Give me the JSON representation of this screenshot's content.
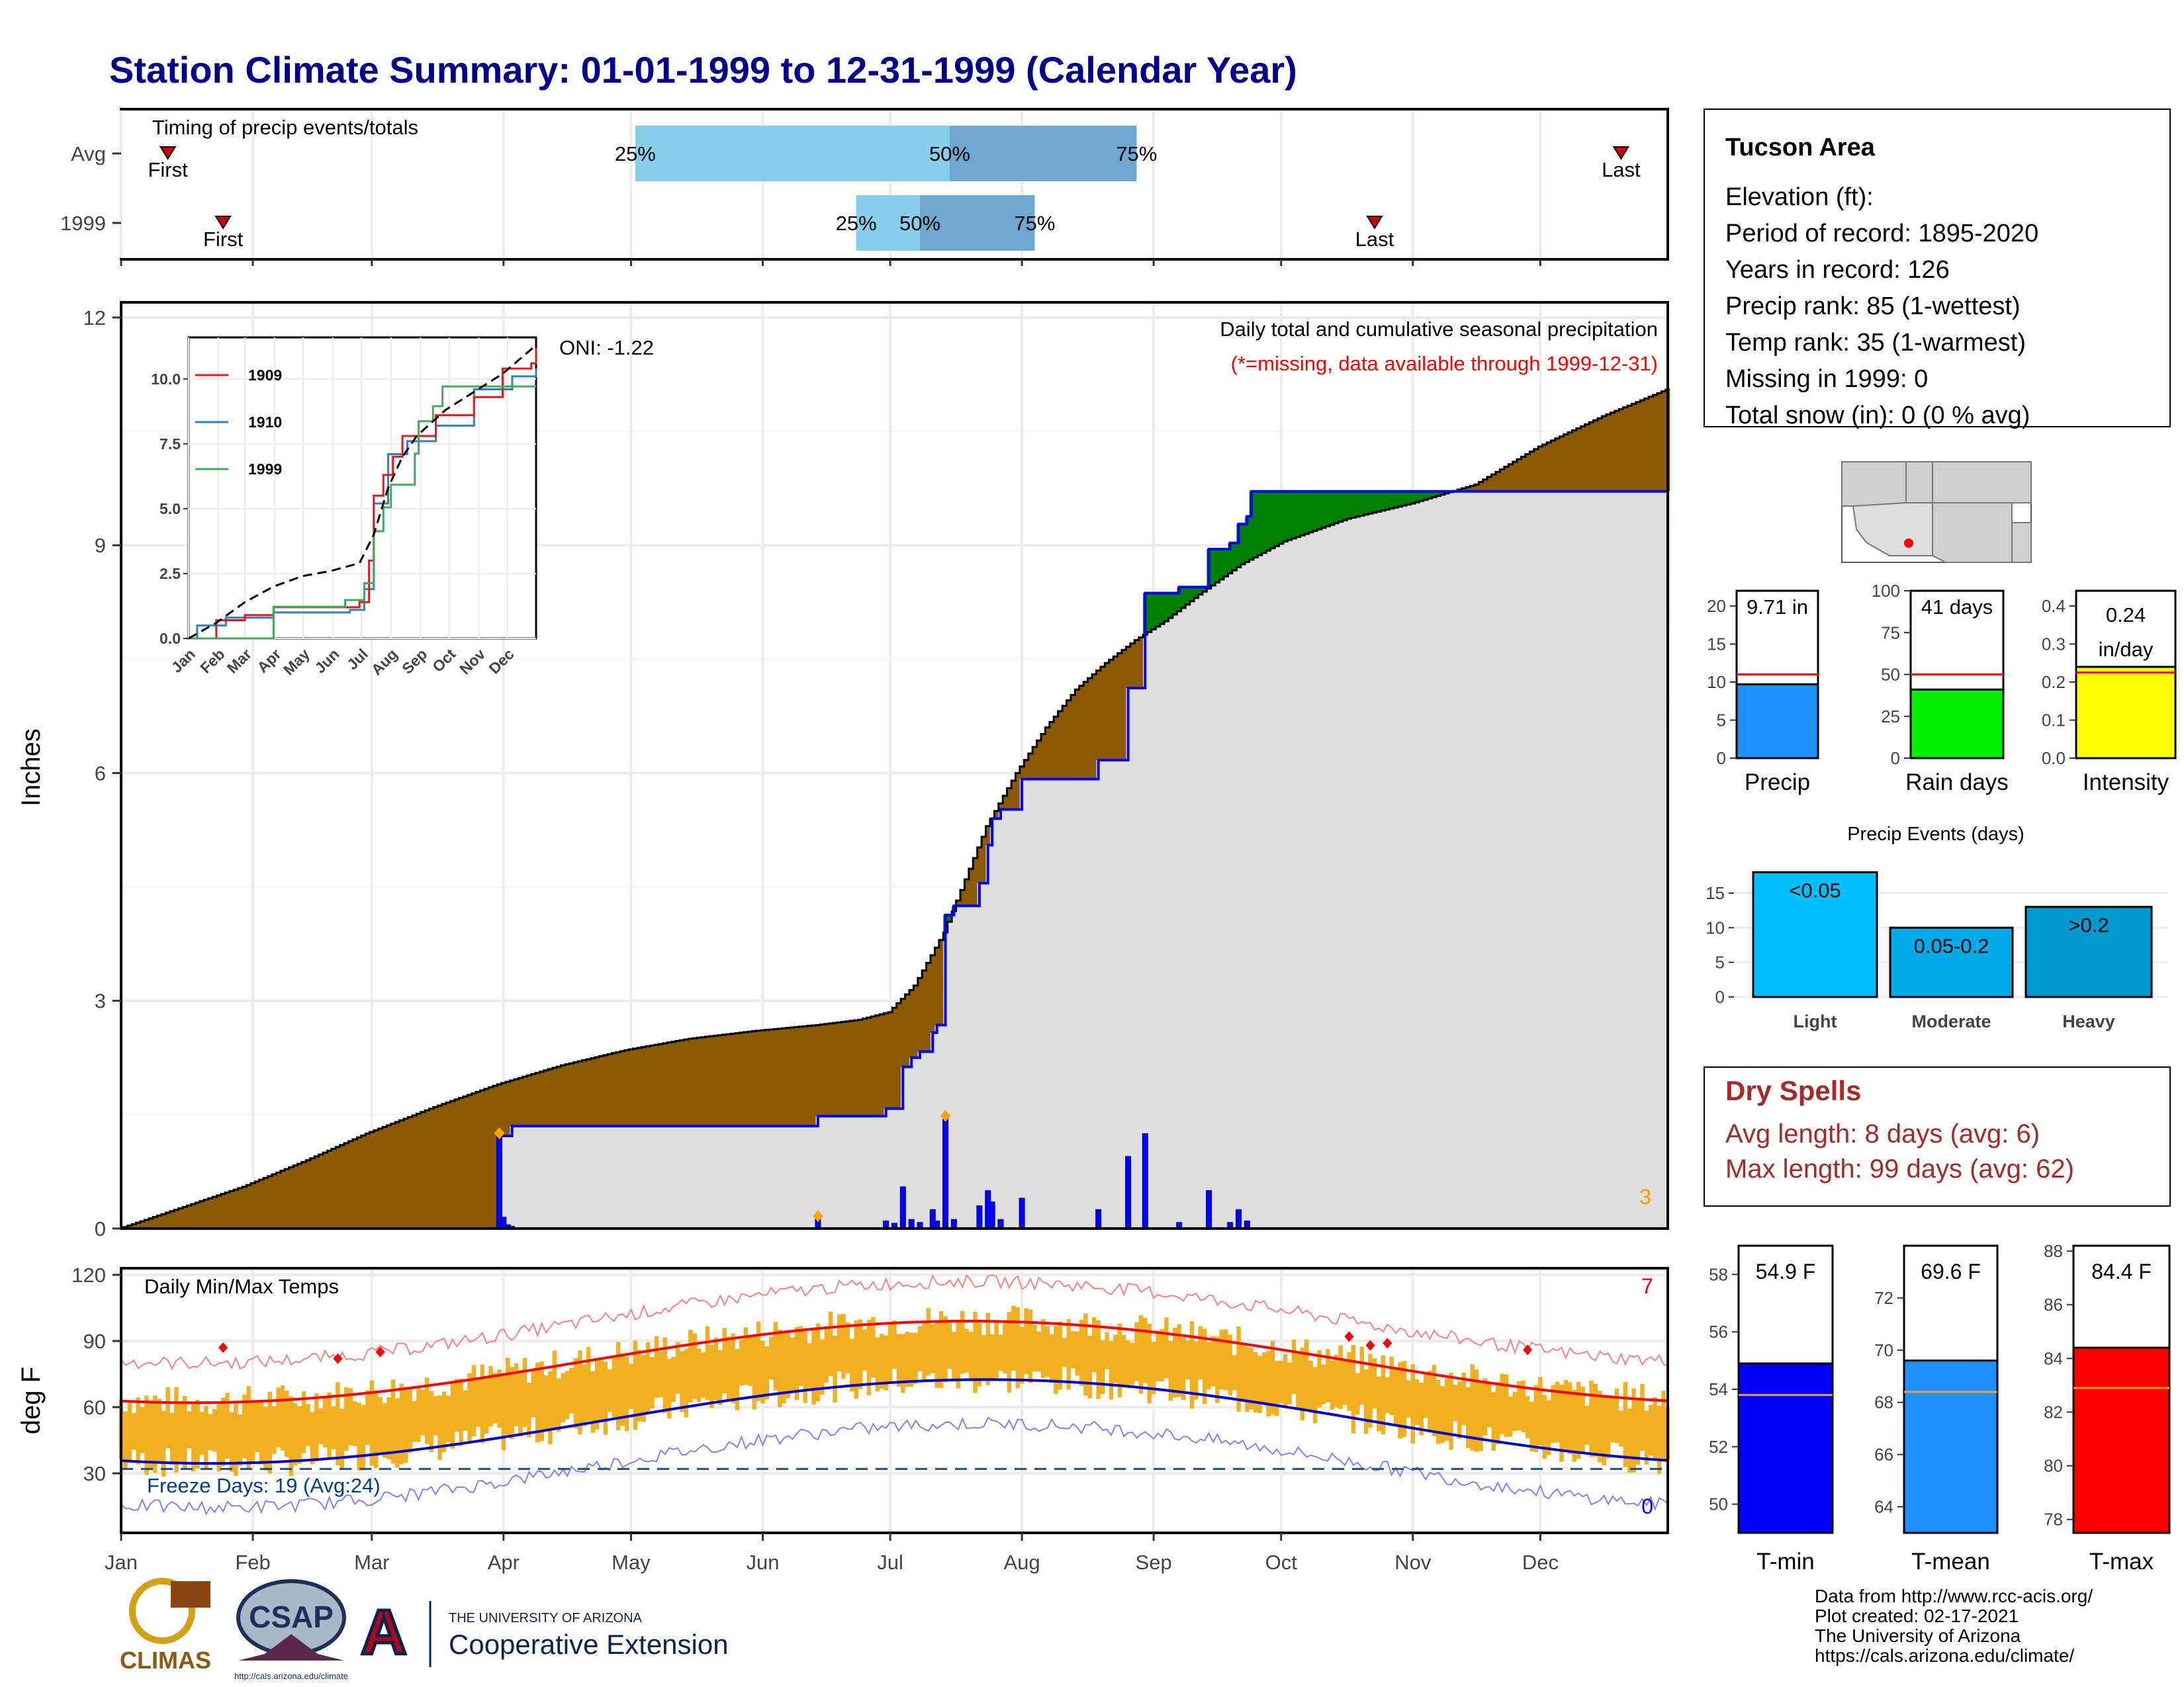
{
  "title": "Station Climate Summary: 01-01-1999 to 12-31-1999 (Calendar Year)",
  "months": [
    "Jan",
    "Feb",
    "Mar",
    "Apr",
    "May",
    "Jun",
    "Jul",
    "Aug",
    "Sep",
    "Oct",
    "Nov",
    "Dec"
  ],
  "timing": {
    "title": "Timing of precip events/totals",
    "rows": [
      {
        "label": "Avg",
        "first_doy": 12,
        "last_doy": 354,
        "p25": 122,
        "p50": 196,
        "p75": 240,
        "p25_label": "25%",
        "p50_label": "50%",
        "p75_label": "75%",
        "first_label": "First",
        "last_label": "Last"
      },
      {
        "label": "1999",
        "first_doy": 25,
        "last_doy": 296,
        "p25": 174,
        "p50": 189,
        "p75": 216,
        "p25_label": "25%",
        "p50_label": "50%",
        "p75_label": "75%",
        "first_label": "First",
        "last_label": "Last"
      }
    ]
  },
  "precip": {
    "ylabel": "Inches",
    "yticks": [
      0,
      3,
      6,
      9,
      12
    ],
    "caption1": "Daily total and cumulative seasonal precipitation",
    "caption2": "(*=missing, data available through 1999-12-31)",
    "oni": "ONI: -1.22",
    "corner_count": "3",
    "avg_cum": [
      [
        1,
        0
      ],
      [
        30,
        0.55
      ],
      [
        45,
        0.9
      ],
      [
        59,
        1.25
      ],
      [
        75,
        1.6
      ],
      [
        90,
        1.9
      ],
      [
        105,
        2.15
      ],
      [
        120,
        2.35
      ],
      [
        135,
        2.5
      ],
      [
        150,
        2.6
      ],
      [
        165,
        2.68
      ],
      [
        175,
        2.75
      ],
      [
        182,
        2.85
      ],
      [
        188,
        3.2
      ],
      [
        195,
        3.9
      ],
      [
        200,
        4.6
      ],
      [
        205,
        5.3
      ],
      [
        212,
        6.0
      ],
      [
        219,
        6.6
      ],
      [
        226,
        7.1
      ],
      [
        233,
        7.45
      ],
      [
        240,
        7.75
      ],
      [
        247,
        8.0
      ],
      [
        255,
        8.35
      ],
      [
        265,
        8.75
      ],
      [
        275,
        9.05
      ],
      [
        290,
        9.35
      ],
      [
        305,
        9.55
      ],
      [
        320,
        9.8
      ],
      [
        335,
        10.3
      ],
      [
        350,
        10.7
      ],
      [
        365,
        11.05
      ]
    ],
    "daily": [
      [
        90,
        1.22
      ],
      [
        91,
        0.15
      ],
      [
        92,
        0.05
      ],
      [
        93,
        0.03
      ],
      [
        165,
        0.13
      ],
      [
        181,
        0.1
      ],
      [
        183,
        0.07
      ],
      [
        185,
        0.55
      ],
      [
        187,
        0.12
      ],
      [
        189,
        0.08
      ],
      [
        192,
        0.25
      ],
      [
        193,
        0.1
      ],
      [
        195,
        1.45
      ],
      [
        197,
        0.12
      ],
      [
        203,
        0.3
      ],
      [
        205,
        0.5
      ],
      [
        206,
        0.35
      ],
      [
        208,
        0.12
      ],
      [
        213,
        0.4
      ],
      [
        231,
        0.25
      ],
      [
        238,
        0.95
      ],
      [
        242,
        1.25
      ],
      [
        250,
        0.08
      ],
      [
        257,
        0.5
      ],
      [
        262,
        0.08
      ],
      [
        264,
        0.25
      ],
      [
        266,
        0.1
      ]
    ],
    "diamonds": [
      90,
      165,
      195
    ],
    "cum_1999": [
      [
        1,
        0
      ],
      [
        89,
        0
      ],
      [
        90,
        1.22
      ],
      [
        93,
        1.35
      ],
      [
        164,
        1.35
      ],
      [
        165,
        1.48
      ],
      [
        180,
        1.48
      ],
      [
        181,
        1.58
      ],
      [
        185,
        2.13
      ],
      [
        187,
        2.25
      ],
      [
        189,
        2.33
      ],
      [
        192,
        2.58
      ],
      [
        193,
        2.68
      ],
      [
        195,
        4.13
      ],
      [
        197,
        4.25
      ],
      [
        203,
        4.55
      ],
      [
        205,
        5.05
      ],
      [
        206,
        5.4
      ],
      [
        208,
        5.52
      ],
      [
        213,
        5.92
      ],
      [
        231,
        6.17
      ],
      [
        238,
        7.12
      ],
      [
        242,
        8.37
      ],
      [
        250,
        8.45
      ],
      [
        257,
        8.95
      ],
      [
        262,
        9.03
      ],
      [
        264,
        9.28
      ],
      [
        266,
        9.38
      ],
      [
        267,
        9.71
      ],
      [
        365,
        9.71
      ]
    ]
  },
  "inset": {
    "yticks": [
      "0.0",
      "2.5",
      "5.0",
      "7.5",
      "10.0"
    ],
    "months": [
      "Jan",
      "Feb",
      "Mar",
      "Apr",
      "May",
      "Jun",
      "Jul",
      "Aug",
      "Sep",
      "Oct",
      "Nov",
      "Dec"
    ],
    "legend": [
      {
        "name": "1909",
        "color": "#e31a1c"
      },
      {
        "name": "1910",
        "color": "#3182bd"
      },
      {
        "name": "1999",
        "color": "#41ab5d"
      }
    ],
    "avg": [
      [
        1,
        0
      ],
      [
        30,
        0.6
      ],
      [
        60,
        1.4
      ],
      [
        90,
        2.0
      ],
      [
        120,
        2.4
      ],
      [
        150,
        2.6
      ],
      [
        180,
        2.9
      ],
      [
        195,
        4.0
      ],
      [
        210,
        5.8
      ],
      [
        225,
        7.0
      ],
      [
        240,
        7.8
      ],
      [
        270,
        8.8
      ],
      [
        300,
        9.5
      ],
      [
        330,
        10.2
      ],
      [
        365,
        11.3
      ]
    ],
    "s1909": [
      [
        1,
        0
      ],
      [
        25,
        0
      ],
      [
        30,
        0.7
      ],
      [
        60,
        0.9
      ],
      [
        90,
        1.2
      ],
      [
        150,
        1.2
      ],
      [
        180,
        1.4
      ],
      [
        190,
        3.0
      ],
      [
        195,
        5.5
      ],
      [
        205,
        6.3
      ],
      [
        215,
        7.0
      ],
      [
        225,
        7.8
      ],
      [
        260,
        8.6
      ],
      [
        300,
        9.3
      ],
      [
        330,
        10.4
      ],
      [
        360,
        10.6
      ],
      [
        365,
        11.2
      ]
    ],
    "s1910": [
      [
        1,
        0
      ],
      [
        10,
        0.5
      ],
      [
        40,
        0.8
      ],
      [
        90,
        1.0
      ],
      [
        170,
        1.1
      ],
      [
        185,
        1.9
      ],
      [
        195,
        5.2
      ],
      [
        210,
        7.1
      ],
      [
        230,
        7.6
      ],
      [
        260,
        8.2
      ],
      [
        300,
        9.6
      ],
      [
        340,
        10.1
      ],
      [
        365,
        10.4
      ]
    ],
    "s1999": [
      [
        1,
        0
      ],
      [
        89,
        0
      ],
      [
        90,
        1.22
      ],
      [
        165,
        1.48
      ],
      [
        185,
        2.13
      ],
      [
        195,
        4.13
      ],
      [
        205,
        5.05
      ],
      [
        213,
        5.92
      ],
      [
        238,
        7.12
      ],
      [
        242,
        8.37
      ],
      [
        257,
        8.95
      ],
      [
        267,
        9.71
      ],
      [
        365,
        9.71
      ]
    ]
  },
  "temps": {
    "ylabel": "deg F",
    "title": "Daily Min/Max Temps",
    "yticks": [
      30,
      60,
      90,
      120
    ],
    "freeze_label": "Freeze Days: 19 (Avg:24)",
    "count_top": "7",
    "count_bottom": "0"
  },
  "station": {
    "name": "Tucson Area",
    "lines": [
      "Elevation (ft):",
      "Period of record: 1895-2020",
      "Years in record: 126",
      "Precip rank: 85 (1-wettest)",
      "Temp rank: 35 (1-warmest)",
      "Missing in 1999: 0",
      "Total snow (in): 0 (0 % avg)"
    ]
  },
  "mini_bars": [
    {
      "label": "Precip",
      "value": 9.71,
      "avg": 11.0,
      "ymax": 22,
      "ticks": [
        0,
        5,
        10,
        15,
        20
      ],
      "text": "9.71 in",
      "color": "#1e90ff"
    },
    {
      "label": "Rain days",
      "value": 41,
      "avg": 50,
      "ymax": 100,
      "ticks": [
        0,
        25,
        50,
        75,
        100
      ],
      "text": "41 days",
      "color": "#00ee00"
    },
    {
      "label": "Intensity",
      "value": 0.24,
      "avg": 0.225,
      "ymax": 0.44,
      "ticks": [
        0.0,
        0.1,
        0.2,
        0.3,
        0.4
      ],
      "tick_labels": [
        "0.0",
        "0.1",
        "0.2",
        "0.3",
        "0.4"
      ],
      "text": "0.24",
      "text2": "in/day",
      "color": "#ffff00"
    }
  ],
  "events": {
    "title": "Precip Events (days)",
    "ticks": [
      0,
      5,
      10,
      15
    ],
    "bars": [
      {
        "label": "Light",
        "value": 18,
        "text": "<0.05",
        "color": "#00bfff"
      },
      {
        "label": "Moderate",
        "value": 10,
        "text": "0.05-0.2",
        "color": "#00a9e8"
      },
      {
        "label": "Heavy",
        "value": 13,
        "text": ">0.2",
        "color": "#0099cc"
      }
    ]
  },
  "dry": {
    "title": "Dry Spells",
    "line1": "Avg length: 8 days (avg: 6)",
    "line2": "Max length: 99 days (avg: 62)"
  },
  "temp_bars": [
    {
      "label": "T-min",
      "value": 54.9,
      "avg": 53.8,
      "ymin": 49,
      "ymax": 59,
      "ticks": [
        50,
        52,
        54,
        56,
        58
      ],
      "text": "54.9 F",
      "color": "#0000ff"
    },
    {
      "label": "T-mean",
      "value": 69.6,
      "avg": 68.4,
      "ymin": 63,
      "ymax": 74,
      "ticks": [
        64,
        66,
        68,
        70,
        72
      ],
      "text": "69.6 F",
      "color": "#1e90ff"
    },
    {
      "label": "T-max",
      "value": 84.4,
      "avg": 82.9,
      "ymin": 77.5,
      "ymax": 88.2,
      "ticks": [
        78,
        80,
        82,
        84,
        86,
        88
      ],
      "text": "84.4 F",
      "color": "#ff0000"
    }
  ],
  "credits": [
    "Data from http://www.rcc-acis.org/",
    "Plot created: 02-17-2021",
    "The University of Arizona",
    "https://cals.arizona.edu/climate/"
  ],
  "logos": {
    "climas": "CLIMAS",
    "csap": "CSAP",
    "csap_url": "http://cals.arizona.edu/climate",
    "ua_small": "THE UNIVERSITY OF ARIZONA",
    "ua_big": "Cooperative Extension"
  },
  "colors": {
    "brown": "#8b5a00",
    "green": "#008000",
    "blue": "#0000ff",
    "gray": "#dedede",
    "title": "#00008b",
    "dry": "#a52a2a",
    "orange": "#f0b020"
  }
}
